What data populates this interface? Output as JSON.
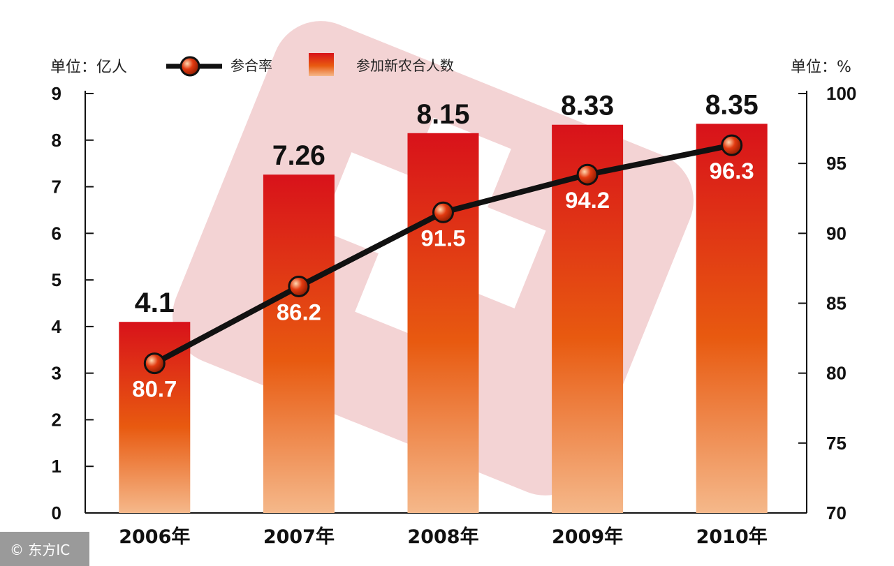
{
  "left_unit": "单位：亿人",
  "right_unit": "单位：%",
  "legend": {
    "line_label": "参合率",
    "bar_label": "参加新农合人数"
  },
  "watermark": "© 东方IC",
  "colors": {
    "bar_top": "#d8121a",
    "bar_mid": "#e85a10",
    "bar_bottom": "#f5b88a",
    "line": "#111111",
    "marker": "#e23a10",
    "bar_label": "#111111",
    "line_label": "#ffffff"
  },
  "chart_data": {
    "type": "bar",
    "categories": [
      "2006年",
      "2007年",
      "2008年",
      "2009年",
      "2010年"
    ],
    "series": [
      {
        "name": "参加新农合人数",
        "type": "bar",
        "axis": "left",
        "values": [
          4.1,
          7.26,
          8.15,
          8.33,
          8.35
        ],
        "labels": [
          "4.1",
          "7.26",
          "8.15",
          "8.33",
          "8.35"
        ]
      },
      {
        "name": "参合率",
        "type": "line",
        "axis": "right",
        "values": [
          80.7,
          86.2,
          91.5,
          94.2,
          96.3
        ],
        "labels": [
          "80.7",
          "86.2",
          "91.5",
          "94.2",
          "96.3"
        ]
      }
    ],
    "left_axis": {
      "ylim": [
        0,
        9
      ],
      "ticks": [
        "0",
        "1",
        "2",
        "3",
        "4",
        "5",
        "6",
        "7",
        "8",
        "9"
      ]
    },
    "right_axis": {
      "ylim": [
        70,
        100
      ],
      "ticks": [
        "70",
        "75",
        "80",
        "85",
        "90",
        "95",
        "100"
      ]
    },
    "legend_position": "top",
    "grid": false
  }
}
